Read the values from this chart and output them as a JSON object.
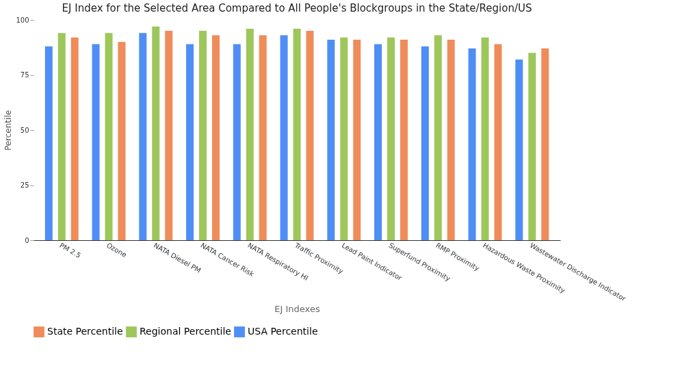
{
  "chart_data": {
    "type": "bar",
    "title": "EJ Index for the Selected Area Compared to All People's Blockgroups in the State/Region/US",
    "xlabel": "EJ Indexes",
    "ylabel": "Percentile",
    "categories": [
      "PM 2.5",
      "Ozone",
      "NATA Diesel PM",
      "NATA Cancer Risk",
      "NATA Respiratory HI",
      "Traffic Proximity",
      "Lead Paint Indicator",
      "Superfund Proximity",
      "RMP Proximity",
      "Hazardous Waste Proximity",
      "Wastewater Discharge Indicator"
    ],
    "series": [
      {
        "name": "State Percentile",
        "color": "#ef8c5a",
        "values": [
          92,
          90,
          95,
          93,
          93,
          95,
          91,
          91,
          91,
          89,
          87
        ]
      },
      {
        "name": "Regional Percentile",
        "color": "#9dc75b",
        "values": [
          94,
          94,
          97,
          95,
          96,
          96,
          92,
          92,
          93,
          92,
          85
        ]
      },
      {
        "name": "USA  Percentile",
        "color": "#4f8ef5",
        "values": [
          88,
          89,
          94,
          89,
          89,
          93,
          91,
          89,
          88,
          87,
          82
        ]
      }
    ],
    "ylim": [
      0,
      100
    ],
    "yticks": [
      0,
      25,
      50,
      75,
      100
    ],
    "grid": false,
    "legend": "bottom"
  }
}
